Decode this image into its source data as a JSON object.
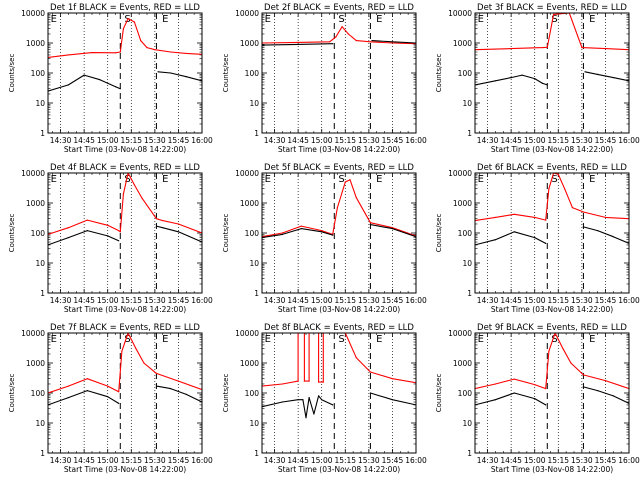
{
  "chart_data": [
    {
      "type": "line",
      "title": "Det 1f BLACK = Events, RED = LLD",
      "xlabel": "Start Time (03-Nov-08 14:22:00)",
      "ylabel": "Counts/sec",
      "y_scale": "log",
      "ylim": [
        1,
        10000
      ],
      "xlim": [
        "14:22",
        "16:00"
      ],
      "xticks": [
        "14:30",
        "14:45",
        "15:00",
        "15:15",
        "15:30",
        "15:45",
        "16:00"
      ],
      "yticks": [
        "1",
        "10",
        "100",
        "1000",
        "10000"
      ],
      "markers": [
        {
          "label": "E",
          "time": "14:23"
        },
        {
          "label": "S",
          "time": "15:10"
        },
        {
          "label": "E",
          "time": "15:34"
        }
      ],
      "dashed_lines": [
        "15:08",
        "15:31"
      ],
      "series": [
        {
          "color": "#ff0000",
          "x": [
            "14:22",
            "14:35",
            "14:50",
            "15:05",
            "15:08",
            "15:10",
            "15:13",
            "15:17",
            "15:21",
            "15:25",
            "15:30",
            "15:40",
            "15:50",
            "16:00"
          ],
          "values": [
            330,
            400,
            480,
            470,
            500,
            3000,
            6500,
            5000,
            1200,
            700,
            600,
            500,
            450,
            420
          ]
        },
        {
          "color": "#000000",
          "x": [
            "14:22",
            "14:35",
            "14:45",
            "14:55",
            "15:05",
            "15:08",
            "15:09",
            "15:31",
            "15:32",
            "15:40",
            "15:50",
            "16:00"
          ],
          "values": [
            25,
            40,
            85,
            60,
            35,
            30,
            null,
            null,
            110,
            100,
            75,
            55
          ]
        }
      ]
    },
    {
      "type": "line",
      "title": "Det 2f BLACK = Events, RED = LLD",
      "xlabel": "Start Time (03-Nov-08 14:22:00)",
      "ylabel": "Counts/sec",
      "y_scale": "log",
      "ylim": [
        1,
        10000
      ],
      "xlim": [
        "14:22",
        "16:00"
      ],
      "xticks": [
        "14:30",
        "14:45",
        "15:00",
        "15:15",
        "15:30",
        "15:45",
        "16:00"
      ],
      "yticks": [
        "1",
        "10",
        "100",
        "1000",
        "10000"
      ],
      "markers": [
        {
          "label": "E",
          "time": "14:23"
        },
        {
          "label": "S",
          "time": "15:10"
        },
        {
          "label": "E",
          "time": "15:34"
        }
      ],
      "dashed_lines": [
        "15:08",
        "15:31"
      ],
      "series": [
        {
          "color": "#ff0000",
          "x": [
            "14:22",
            "14:45",
            "15:05",
            "15:09",
            "15:13",
            "15:17",
            "15:22",
            "15:31",
            "15:45",
            "16:00"
          ],
          "values": [
            1000,
            1050,
            1100,
            1600,
            3500,
            2000,
            1200,
            1100,
            1000,
            950
          ]
        },
        {
          "color": "#000000",
          "x": [
            "14:22",
            "14:45",
            "15:07",
            "15:08",
            "15:32",
            "15:45",
            "16:00"
          ],
          "values": [
            850,
            900,
            950,
            null,
            1200,
            1100,
            1000
          ]
        }
      ]
    },
    {
      "type": "line",
      "title": "Det 3f BLACK = Events, RED = LLD",
      "xlabel": "Start Time (03-Nov-08 14:22:00)",
      "ylabel": "Counts/sec",
      "y_scale": "log",
      "ylim": [
        1,
        10000
      ],
      "xlim": [
        "14:22",
        "16:00"
      ],
      "xticks": [
        "14:30",
        "14:45",
        "15:00",
        "15:15",
        "15:30",
        "15:45",
        "16:00"
      ],
      "yticks": [
        "1",
        "10",
        "100",
        "1000",
        "10000"
      ],
      "markers": [
        {
          "label": "E",
          "time": "14:23"
        },
        {
          "label": "S",
          "time": "15:10"
        },
        {
          "label": "E",
          "time": "15:34"
        }
      ],
      "dashed_lines": [
        "15:08",
        "15:31"
      ],
      "series": [
        {
          "color": "#ff0000",
          "x": [
            "14:22",
            "14:45",
            "15:05",
            "15:08",
            "15:12",
            "15:22",
            "15:30",
            "15:45",
            "16:00"
          ],
          "values": [
            600,
            650,
            700,
            720,
            9000,
            10000,
            700,
            650,
            600
          ]
        },
        {
          "color": "#000000",
          "x": [
            "14:22",
            "14:35",
            "14:45",
            "14:52",
            "15:00",
            "15:05",
            "15:08",
            "15:09",
            "15:32",
            "15:40",
            "15:50",
            "16:00"
          ],
          "values": [
            40,
            55,
            70,
            85,
            65,
            45,
            40,
            null,
            110,
            90,
            70,
            55
          ]
        }
      ]
    },
    {
      "type": "line",
      "title": "Det 4f BLACK = Events, RED = LLD",
      "xlabel": "Start Time (03-Nov-08 14:22:00)",
      "ylabel": "Counts/sec",
      "y_scale": "log",
      "ylim": [
        1,
        10000
      ],
      "xlim": [
        "14:22",
        "16:00"
      ],
      "xticks": [
        "14:30",
        "14:45",
        "15:00",
        "15:15",
        "15:30",
        "15:45",
        "16:00"
      ],
      "yticks": [
        "1",
        "10",
        "100",
        "1000",
        "10000"
      ],
      "markers": [
        {
          "label": "E",
          "time": "14:23"
        },
        {
          "label": "S",
          "time": "15:10"
        },
        {
          "label": "E",
          "time": "15:34"
        }
      ],
      "dashed_lines": [
        "15:08",
        "15:31"
      ],
      "series": [
        {
          "color": "#ff0000",
          "x": [
            "14:22",
            "14:35",
            "14:47",
            "15:00",
            "15:07",
            "15:08",
            "15:10",
            "15:13",
            "15:17",
            "15:22",
            "15:31",
            "15:35",
            "15:45",
            "16:00"
          ],
          "values": [
            90,
            150,
            270,
            180,
            120,
            110,
            2000,
            10000,
            4000,
            1400,
            300,
            260,
            200,
            100
          ]
        },
        {
          "color": "#000000",
          "x": [
            "14:22",
            "14:35",
            "14:47",
            "15:00",
            "15:07",
            "15:08",
            "15:31",
            "15:35",
            "15:45",
            "16:00"
          ],
          "values": [
            40,
            70,
            120,
            80,
            55,
            null,
            170,
            150,
            110,
            50
          ]
        }
      ]
    },
    {
      "type": "line",
      "title": "Det 5f BLACK = Events, RED = LLD",
      "xlabel": "Start Time (03-Nov-08 14:22:00)",
      "ylabel": "Counts/sec",
      "y_scale": "log",
      "ylim": [
        1,
        10000
      ],
      "xlim": [
        "14:22",
        "16:00"
      ],
      "xticks": [
        "14:30",
        "14:45",
        "15:00",
        "15:15",
        "15:30",
        "15:45",
        "16:00"
      ],
      "yticks": [
        "1",
        "10",
        "100",
        "1000",
        "10000"
      ],
      "markers": [
        {
          "label": "E",
          "time": "14:23"
        },
        {
          "label": "S",
          "time": "15:10"
        },
        {
          "label": "E",
          "time": "15:34"
        }
      ],
      "dashed_lines": [
        "15:08",
        "15:31"
      ],
      "series": [
        {
          "color": "#ff0000",
          "x": [
            "14:22",
            "14:35",
            "14:47",
            "15:00",
            "15:07",
            "15:10",
            "15:15",
            "15:18",
            "15:22",
            "15:31",
            "15:45",
            "16:00"
          ],
          "values": [
            75,
            100,
            170,
            120,
            90,
            700,
            5000,
            6000,
            1500,
            220,
            150,
            80
          ]
        },
        {
          "color": "#000000",
          "x": [
            "14:22",
            "14:35",
            "14:47",
            "15:00",
            "15:07",
            "15:08",
            "15:31",
            "15:45",
            "16:00"
          ],
          "values": [
            70,
            90,
            140,
            110,
            85,
            null,
            190,
            140,
            75
          ]
        }
      ]
    },
    {
      "type": "line",
      "title": "Det 6f BLACK = Events, RED = LLD",
      "xlabel": "Start Time (03-Nov-08 14:22:00)",
      "ylabel": "Counts/sec",
      "y_scale": "log",
      "ylim": [
        1,
        10000
      ],
      "xlim": [
        "14:22",
        "16:00"
      ],
      "xticks": [
        "14:30",
        "14:45",
        "15:00",
        "15:15",
        "15:30",
        "15:45",
        "16:00"
      ],
      "yticks": [
        "1",
        "10",
        "100",
        "1000",
        "10000"
      ],
      "markers": [
        {
          "label": "E",
          "time": "14:23"
        },
        {
          "label": "S",
          "time": "15:10"
        },
        {
          "label": "E",
          "time": "15:34"
        }
      ],
      "dashed_lines": [
        "15:08",
        "15:31"
      ],
      "series": [
        {
          "color": "#ff0000",
          "x": [
            "14:22",
            "14:35",
            "14:47",
            "15:00",
            "15:07",
            "15:09",
            "15:12",
            "15:15",
            "15:19",
            "15:24",
            "15:31",
            "15:45",
            "16:00"
          ],
          "values": [
            260,
            330,
            420,
            330,
            270,
            3000,
            10000,
            9000,
            3000,
            700,
            500,
            330,
            300
          ]
        },
        {
          "color": "#000000",
          "x": [
            "14:22",
            "14:35",
            "14:47",
            "15:00",
            "15:07",
            "15:08",
            "15:31",
            "15:40",
            "15:50",
            "16:00"
          ],
          "values": [
            40,
            60,
            110,
            70,
            45,
            null,
            160,
            120,
            75,
            45
          ]
        }
      ]
    },
    {
      "type": "line",
      "title": "Det 7f BLACK = Events, RED = LLD",
      "xlabel": "Start Time (03-Nov-08 14:22:00)",
      "ylabel": "Counts/sec",
      "y_scale": "log",
      "ylim": [
        1,
        10000
      ],
      "xlim": [
        "14:22",
        "16:00"
      ],
      "xticks": [
        "14:30",
        "14:45",
        "15:00",
        "15:15",
        "15:30",
        "15:45",
        "16:00"
      ],
      "yticks": [
        "1",
        "10",
        "100",
        "1000",
        "10000"
      ],
      "markers": [
        {
          "label": "E",
          "time": "14:23"
        },
        {
          "label": "S",
          "time": "15:10"
        },
        {
          "label": "E",
          "time": "15:34"
        }
      ],
      "dashed_lines": [
        "15:08",
        "15:31"
      ],
      "series": [
        {
          "color": "#ff0000",
          "x": [
            "14:22",
            "14:35",
            "14:47",
            "15:00",
            "15:07",
            "15:09",
            "15:13",
            "15:18",
            "15:23",
            "15:31",
            "15:45",
            "16:00"
          ],
          "values": [
            100,
            170,
            300,
            170,
            110,
            2500,
            10000,
            3000,
            1000,
            450,
            250,
            130
          ]
        },
        {
          "color": "#000000",
          "x": [
            "14:22",
            "14:35",
            "14:47",
            "15:00",
            "15:07",
            "15:08",
            "15:31",
            "15:40",
            "15:50",
            "16:00"
          ],
          "values": [
            40,
            70,
            120,
            75,
            45,
            null,
            170,
            140,
            90,
            50
          ]
        }
      ]
    },
    {
      "type": "line",
      "title": "Det 8f BLACK = Events, RED = LLD",
      "xlabel": "Start Time (03-Nov-08 14:22:00)",
      "ylabel": "Counts/sec",
      "y_scale": "log",
      "ylim": [
        1,
        10000
      ],
      "xlim": [
        "14:22",
        "16:00"
      ],
      "xticks": [
        "14:30",
        "14:45",
        "15:00",
        "15:15",
        "15:30",
        "15:45",
        "16:00"
      ],
      "yticks": [
        "1",
        "10",
        "100",
        "1000",
        "10000"
      ],
      "markers": [
        {
          "label": "E",
          "time": "14:23"
        },
        {
          "label": "S",
          "time": "15:10"
        },
        {
          "label": "E",
          "time": "15:34"
        }
      ],
      "dashed_lines": [
        "15:08",
        "15:31"
      ],
      "series": [
        {
          "color": "#ff0000",
          "x": [
            "14:22",
            "14:35",
            "14:45",
            "14:45",
            "14:49",
            "14:49",
            "14:52",
            "14:52",
            "14:58",
            "14:58",
            "15:01",
            "15:01",
            "15:07",
            "15:10",
            "15:15",
            "15:22",
            "15:31",
            "15:45",
            "16:00"
          ],
          "values": [
            170,
            200,
            250,
            10000,
            10000,
            250,
            250,
            10000,
            10000,
            230,
            230,
            10000,
            10000,
            10000,
            10000,
            1500,
            500,
            300,
            220
          ]
        },
        {
          "color": "#000000",
          "x": [
            "14:22",
            "14:35",
            "14:45",
            "14:48",
            "14:50",
            "14:52",
            "14:55",
            "14:58",
            "15:00",
            "15:07",
            "15:08",
            "15:31",
            "15:45",
            "16:00"
          ],
          "values": [
            35,
            50,
            60,
            60,
            15,
            70,
            20,
            80,
            60,
            40,
            null,
            100,
            60,
            40
          ]
        }
      ]
    },
    {
      "type": "line",
      "title": "Det 9f BLACK = Events, RED = LLD",
      "xlabel": "Start Time (03-Nov-08 14:22:00)",
      "ylabel": "Counts/sec",
      "y_scale": "log",
      "ylim": [
        1,
        10000
      ],
      "xlim": [
        "14:22",
        "16:00"
      ],
      "xticks": [
        "14:30",
        "14:45",
        "15:00",
        "15:15",
        "15:30",
        "15:45",
        "16:00"
      ],
      "yticks": [
        "1",
        "10",
        "100",
        "1000",
        "10000"
      ],
      "markers": [
        {
          "label": "E",
          "time": "14:23"
        },
        {
          "label": "S",
          "time": "15:10"
        },
        {
          "label": "E",
          "time": "15:34"
        }
      ],
      "dashed_lines": [
        "15:08",
        "15:31"
      ],
      "series": [
        {
          "color": "#ff0000",
          "x": [
            "14:22",
            "14:35",
            "14:47",
            "15:00",
            "15:07",
            "15:09",
            "15:13",
            "15:18",
            "15:23",
            "15:31",
            "15:45",
            "16:00"
          ],
          "values": [
            140,
            200,
            290,
            190,
            140,
            2500,
            10000,
            3000,
            1000,
            400,
            260,
            140
          ]
        },
        {
          "color": "#000000",
          "x": [
            "14:22",
            "14:35",
            "14:47",
            "15:00",
            "15:07",
            "15:08",
            "15:31",
            "15:40",
            "15:50",
            "16:00"
          ],
          "values": [
            40,
            60,
            100,
            65,
            40,
            null,
            160,
            120,
            80,
            45
          ]
        }
      ]
    }
  ]
}
